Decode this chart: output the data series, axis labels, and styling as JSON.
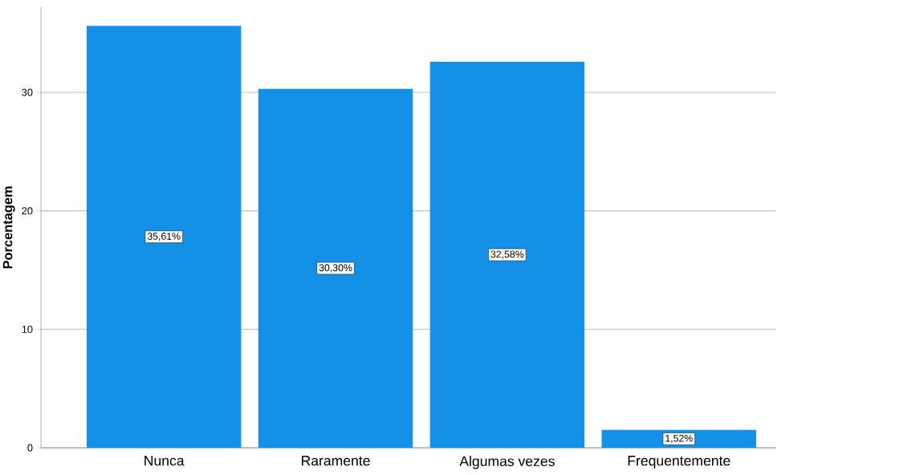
{
  "chart_data": {
    "type": "bar",
    "ylabel": "Porcentagem",
    "categories": [
      "Nunca",
      "Raramente",
      "Algumas vezes",
      "Frequentemente"
    ],
    "values": [
      35.61,
      30.3,
      32.58,
      1.52
    ],
    "value_labels": [
      "35,61%",
      "30,30%",
      "32,58%",
      "1,52%"
    ],
    "color": "#1490e6",
    "ylim": [
      0,
      37.2
    ],
    "yticks": [
      0,
      10,
      20,
      30
    ],
    "grid": "y"
  }
}
